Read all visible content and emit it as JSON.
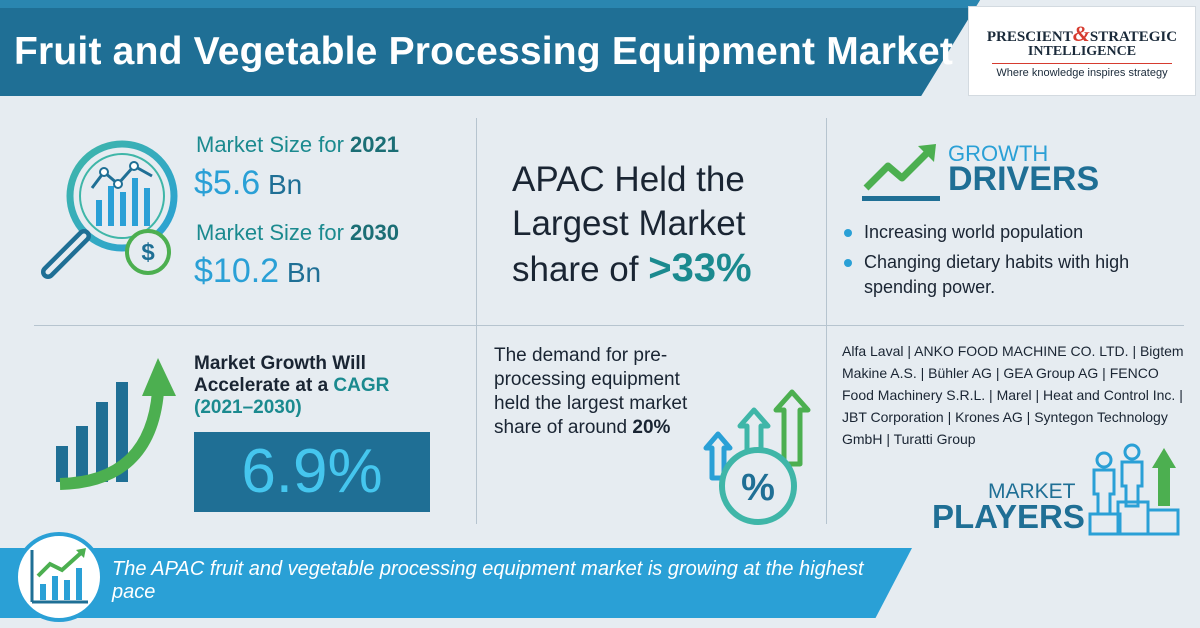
{
  "header": {
    "title": "Fruit and Vegetable Processing Equipment Market"
  },
  "logo": {
    "line1_a": "PRESCIENT",
    "line1_amp": "&",
    "line1_b": "STRATEGIC",
    "line2": "INTELLIGENCE",
    "tagline": "Where knowledge inspires strategy"
  },
  "market_size": {
    "label_2021_prefix": "Market Size for ",
    "year_2021": "2021",
    "value_2021": "$5.6",
    "unit_2021": " Bn",
    "label_2030_prefix": "Market Size for ",
    "year_2030": "2030",
    "value_2030": "$10.2",
    "unit_2030": " Bn"
  },
  "apac": {
    "line1": "APAC Held the",
    "line2": "Largest Market",
    "line3_prefix": "share of ",
    "share": ">33%"
  },
  "growth_drivers": {
    "heading1": "GROWTH",
    "heading2": "DRIVERS",
    "items": [
      "Increasing world population",
      "Changing dietary habits with high spending power."
    ]
  },
  "cagr": {
    "line1": "Market Growth Will",
    "line2_prefix": "Accelerate at a ",
    "line2_hl": "CAGR",
    "line3": "(2021–2030)",
    "value": "6.9%"
  },
  "demand": {
    "text": "The demand for pre-processing equipment held the largest market share of around ",
    "share": "20%",
    "percent_symbol": "%"
  },
  "market_players": {
    "list": "Alfa Laval | ANKO FOOD MACHINE CO. LTD. | Bigtem Makine A.S. | Bühler AG | GEA Group AG | FENCO Food Machinery S.R.L. | Marel | Heat and Control Inc. | JBT Corporation | Krones AG | Syntegon Technology GmbH | Turatti Group",
    "heading1": "MARKET",
    "heading2": "PLAYERS"
  },
  "banner": {
    "text": "The APAC fruit and vegetable processing equipment market is growing at the highest pace"
  },
  "icons": {
    "magnifier": "magnifier-chart-icon",
    "dollar": "dollar-coin-icon",
    "trend": "growth-trend-icon",
    "bars": "bar-growth-icon",
    "percent": "percent-arrows-icon",
    "podium": "podium-icon",
    "line_chart": "line-chart-icon"
  },
  "colors": {
    "primary": "#1f6f95",
    "accent": "#2aa0d6",
    "teal": "#1b8a8f",
    "green": "#4caf50",
    "background": "#e6ecf1"
  }
}
